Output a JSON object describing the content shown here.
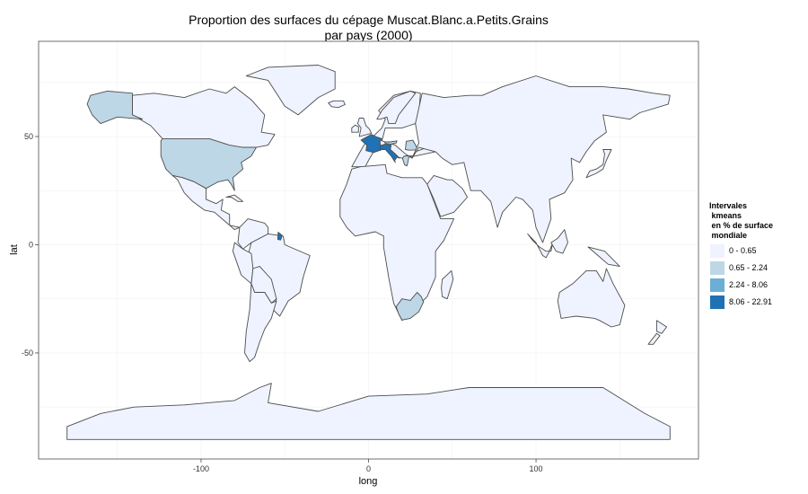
{
  "title": {
    "line1": "Proportion des surfaces du cépage Muscat.Blanc.a.Petits.Grains",
    "line2": "par pays (2000)"
  },
  "axes": {
    "xlabel": "long",
    "ylabel": "lat",
    "xticks": [
      -100,
      0,
      100
    ],
    "yticks": [
      50,
      0,
      -50
    ],
    "xlim": [
      -197,
      197
    ],
    "ylim": [
      -99,
      94
    ],
    "grid": true
  },
  "legend": {
    "title": "Intervales\n kmeans\n en % de surface\n mondiale",
    "position": "right",
    "items": [
      {
        "label": "0 - 0.65",
        "color": "#eff3ff"
      },
      {
        "label": "0.65 - 2.24",
        "color": "#bdd7e7"
      },
      {
        "label": "2.24 - 8.06",
        "color": "#6baed6"
      },
      {
        "label": "8.06 - 22.91",
        "color": "#2171b5"
      }
    ]
  },
  "colors": {
    "panel_background": "#ffffff",
    "grid": "#f0f0f0",
    "border": "#4d4d4d",
    "land_default": "#eff3ff",
    "outline": "#4d4d4d"
  },
  "chart_data": {
    "type": "choropleth",
    "title": "Proportion des surfaces du cépage Muscat.Blanc.a.Petits.Grains par pays (2000)",
    "classes": [
      "0 - 0.65",
      "0.65 - 2.24",
      "2.24 - 8.06",
      "8.06 - 22.91"
    ],
    "highlighted_regions": [
      {
        "region": "France",
        "class": "8.06 - 22.91"
      },
      {
        "region": "Italy",
        "class": "8.06 - 22.91"
      },
      {
        "region": "French Guiana",
        "class": "8.06 - 22.91"
      },
      {
        "region": "USA",
        "class": "0.65 - 2.24"
      },
      {
        "region": "Alaska",
        "class": "0.65 - 2.24"
      },
      {
        "region": "South Africa",
        "class": "0.65 - 2.24"
      },
      {
        "region": "Romania",
        "class": "0.65 - 2.24"
      },
      {
        "region": "Greece",
        "class": "0.65 - 2.24"
      },
      {
        "region": "Austria",
        "class": "0.65 - 2.24"
      }
    ],
    "default_class": "0 - 0.65"
  }
}
